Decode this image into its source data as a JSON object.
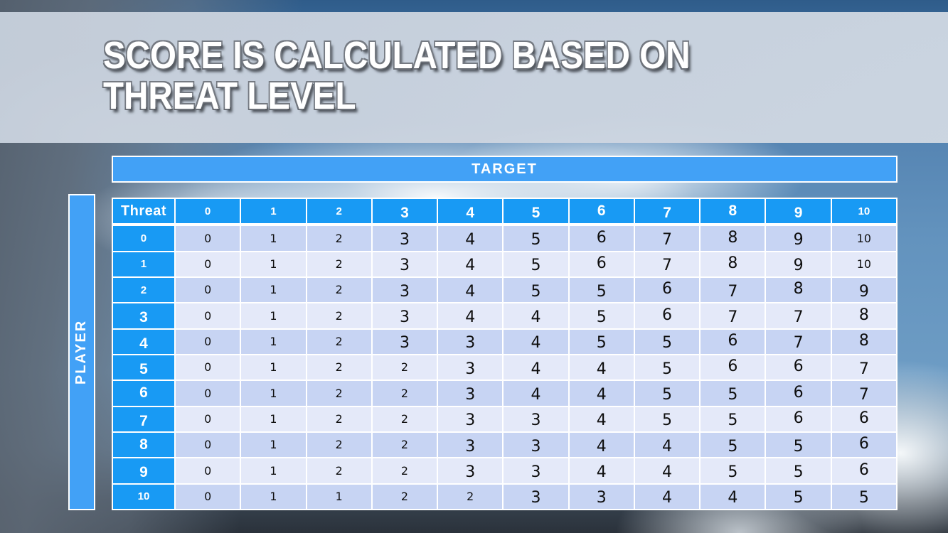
{
  "slide": {
    "title": {
      "line1": "SCORE IS CALCULATED BASED ON",
      "line2": "THREAT LEVEL"
    }
  },
  "chart_data": {
    "type": "table",
    "top_axis_label": "TARGET",
    "left_axis_label": "PLAYER",
    "corner_label": "Threat",
    "column_headers": [
      "0",
      "1",
      "2",
      "3",
      "4",
      "5",
      "6",
      "7",
      "8",
      "9",
      "10"
    ],
    "row_headers": [
      "0",
      "1",
      "2",
      "3",
      "4",
      "5",
      "6",
      "7",
      "8",
      "9",
      "10"
    ],
    "rows": [
      [
        0,
        1,
        2,
        3,
        4,
        5,
        6,
        7,
        8,
        9,
        10
      ],
      [
        0,
        1,
        2,
        3,
        4,
        5,
        6,
        7,
        8,
        9,
        10
      ],
      [
        0,
        1,
        2,
        3,
        4,
        5,
        5,
        6,
        7,
        8,
        9
      ],
      [
        0,
        1,
        2,
        3,
        4,
        4,
        5,
        6,
        7,
        7,
        8
      ],
      [
        0,
        1,
        2,
        3,
        3,
        4,
        5,
        5,
        6,
        7,
        8
      ],
      [
        0,
        1,
        2,
        2,
        3,
        4,
        4,
        5,
        6,
        6,
        7
      ],
      [
        0,
        1,
        2,
        2,
        3,
        4,
        4,
        5,
        5,
        6,
        7
      ],
      [
        0,
        1,
        2,
        2,
        3,
        3,
        4,
        5,
        5,
        6,
        6
      ],
      [
        0,
        1,
        2,
        2,
        3,
        3,
        4,
        4,
        5,
        5,
        6
      ],
      [
        0,
        1,
        2,
        2,
        3,
        3,
        4,
        4,
        5,
        5,
        6
      ],
      [
        0,
        1,
        1,
        2,
        2,
        3,
        3,
        4,
        4,
        5,
        5
      ]
    ]
  },
  "colors": {
    "banner_blue": "#42a1f6",
    "header_blue": "#189af4",
    "row_dark": "#c7d4f3",
    "row_light": "#e4e9f9",
    "cell_text": "#0e0e0e",
    "title_text": "#ffffff",
    "title_band": "#ccd5e0"
  }
}
